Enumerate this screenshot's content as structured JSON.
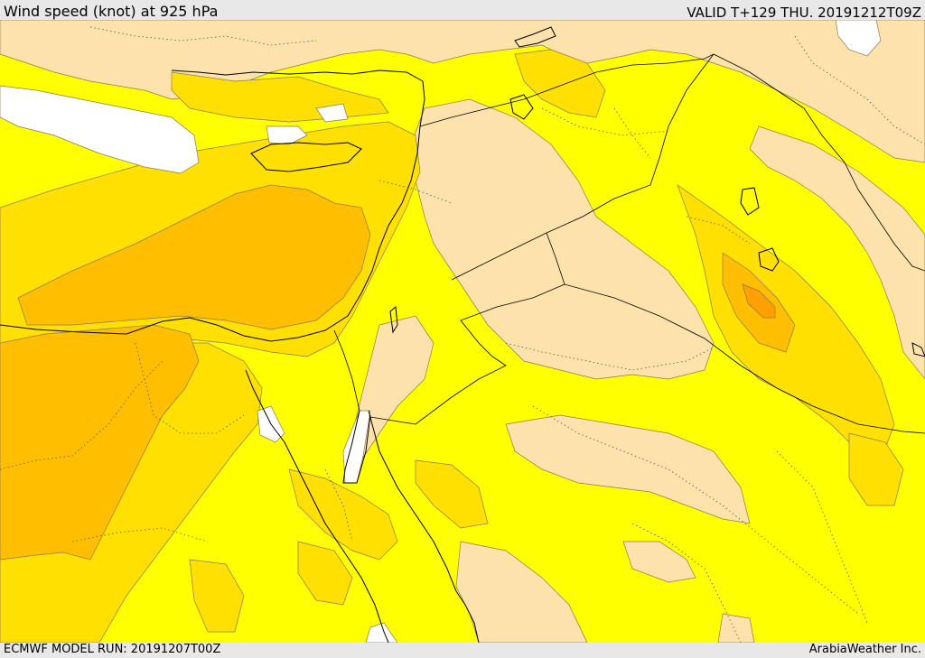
{
  "header": {
    "title": "Wind speed (knot) at 925 hPa",
    "valid": "VALID T+129 THU. 20191212T09Z"
  },
  "footer": {
    "model_run": "ECMWF MODEL RUN: 20191207T00Z",
    "credit": "ArabiaWeather Inc."
  },
  "palette": {
    "calm": "#ffffff",
    "light": "#fde3ab",
    "moderate": "#ffff00",
    "fresh": "#ffe000",
    "strong": "#ffbf00",
    "very_strong": "#ffa000"
  }
}
